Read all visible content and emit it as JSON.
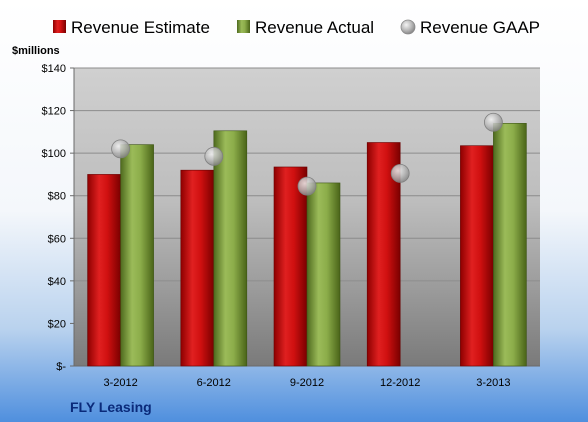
{
  "chart_data": {
    "type": "bar",
    "title": "",
    "xlabel": "",
    "ylabel": "",
    "unit_label": "$millions",
    "company": "FLY Leasing",
    "categories": [
      "3-2012",
      "6-2012",
      "9-2012",
      "12-2012",
      "3-2013"
    ],
    "series": [
      {
        "name": "Revenue Estimate",
        "kind": "bar",
        "color": "#c00000",
        "values": [
          90,
          92,
          93.5,
          105,
          103.5
        ]
      },
      {
        "name": "Revenue Actual",
        "kind": "bar",
        "color": "#76923c",
        "values": [
          104,
          110.5,
          86,
          null,
          114
        ]
      },
      {
        "name": "Revenue GAAP",
        "kind": "marker",
        "color": "#a6a6a6",
        "values": [
          102,
          98.5,
          84.5,
          90.5,
          114.5
        ]
      }
    ],
    "ylim": [
      0,
      140
    ],
    "yticks": [
      0,
      20,
      40,
      60,
      80,
      100,
      120,
      140
    ],
    "ytick_labels": [
      "$-",
      "$20",
      "$40",
      "$60",
      "$80",
      "$100",
      "$120",
      "$140"
    ],
    "grid": true,
    "legend_position": "top"
  }
}
